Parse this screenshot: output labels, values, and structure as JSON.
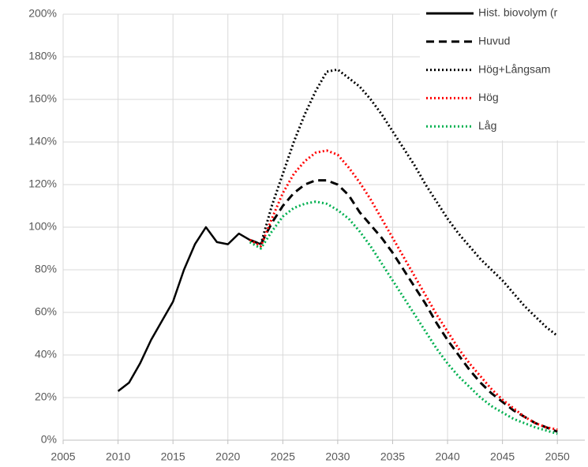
{
  "chart_data": {
    "type": "line",
    "xlim": [
      2005,
      2052.5
    ],
    "xticks": [
      2005,
      2010,
      2015,
      2020,
      2025,
      2030,
      2035,
      2040,
      2045,
      2050
    ],
    "ylim": [
      0,
      200
    ],
    "yticks": [
      {
        "value": 0,
        "label": "0%"
      },
      {
        "value": 20,
        "label": "20%"
      },
      {
        "value": 40,
        "label": "40%"
      },
      {
        "value": 60,
        "label": "60%"
      },
      {
        "value": 80,
        "label": "80%"
      },
      {
        "value": 100,
        "label": "100%"
      },
      {
        "value": 120,
        "label": "120%"
      },
      {
        "value": 140,
        "label": "140%"
      },
      {
        "value": 160,
        "label": "160%"
      },
      {
        "value": 180,
        "label": "180%"
      },
      {
        "value": 200,
        "label": "200%"
      }
    ],
    "grid": true,
    "legend": "top-right",
    "series": [
      {
        "name": "Hist. biovolym (r",
        "color": "#000000",
        "style": "solid",
        "x": [
          2010,
          2011,
          2012,
          2013,
          2014,
          2015,
          2016,
          2017,
          2018,
          2019,
          2020,
          2021,
          2022,
          2023
        ],
        "values": [
          23,
          27,
          36,
          47,
          56,
          65,
          80,
          92,
          100,
          93,
          92,
          97,
          94,
          92
        ]
      },
      {
        "name": "Huvud",
        "color": "#000000",
        "style": "dashed",
        "x": [
          2022,
          2023,
          2024,
          2025,
          2026,
          2027,
          2028,
          2029,
          2030,
          2031,
          2032,
          2033,
          2034,
          2035,
          2036,
          2037,
          2038,
          2039,
          2040,
          2041,
          2042,
          2043,
          2044,
          2045,
          2046,
          2047,
          2048,
          2049,
          2050
        ],
        "values": [
          94,
          92,
          102,
          110,
          116,
          120,
          122,
          122,
          120,
          115,
          107,
          101,
          95,
          88,
          80,
          72,
          64,
          55,
          47,
          40,
          33,
          27,
          22,
          18,
          14,
          11,
          8,
          6,
          4
        ]
      },
      {
        "name": "Hög+Långsam",
        "color": "#000000",
        "style": "dotted",
        "x": [
          2023,
          2024,
          2025,
          2026,
          2027,
          2028,
          2029,
          2030,
          2031,
          2032,
          2033,
          2034,
          2035,
          2036,
          2037,
          2038,
          2039,
          2040,
          2041,
          2042,
          2043,
          2044,
          2045,
          2046,
          2047,
          2048,
          2049,
          2050
        ],
        "values": [
          92,
          110,
          125,
          140,
          153,
          164,
          173,
          174,
          170,
          166,
          160,
          153,
          145,
          137,
          129,
          120,
          112,
          104,
          97,
          91,
          85,
          80,
          75,
          69,
          63,
          58,
          53,
          49
        ]
      },
      {
        "name": "Hög",
        "color": "#ff0000",
        "style": "dotted",
        "x": [
          2022,
          2023,
          2024,
          2025,
          2026,
          2027,
          2028,
          2029,
          2030,
          2031,
          2032,
          2033,
          2034,
          2035,
          2036,
          2037,
          2038,
          2039,
          2040,
          2041,
          2042,
          2043,
          2044,
          2045,
          2046,
          2047,
          2048,
          2049,
          2050
        ],
        "values": [
          94,
          91,
          104,
          116,
          125,
          131,
          135,
          136,
          134,
          128,
          121,
          113,
          104,
          95,
          86,
          77,
          68,
          59,
          51,
          43,
          36,
          30,
          24,
          19,
          15,
          11,
          8,
          6,
          5
        ]
      },
      {
        "name": "Låg",
        "color": "#00b050",
        "style": "dotted",
        "x": [
          2022,
          2023,
          2024,
          2025,
          2026,
          2027,
          2028,
          2029,
          2030,
          2031,
          2032,
          2033,
          2034,
          2035,
          2036,
          2037,
          2038,
          2039,
          2040,
          2041,
          2042,
          2043,
          2044,
          2045,
          2046,
          2047,
          2048,
          2049,
          2050
        ],
        "values": [
          93,
          90,
          98,
          105,
          109,
          111,
          112,
          111,
          108,
          104,
          98,
          91,
          83,
          75,
          67,
          59,
          51,
          43,
          36,
          30,
          25,
          20,
          16,
          13,
          10,
          8,
          6,
          4.5,
          3
        ]
      }
    ]
  }
}
